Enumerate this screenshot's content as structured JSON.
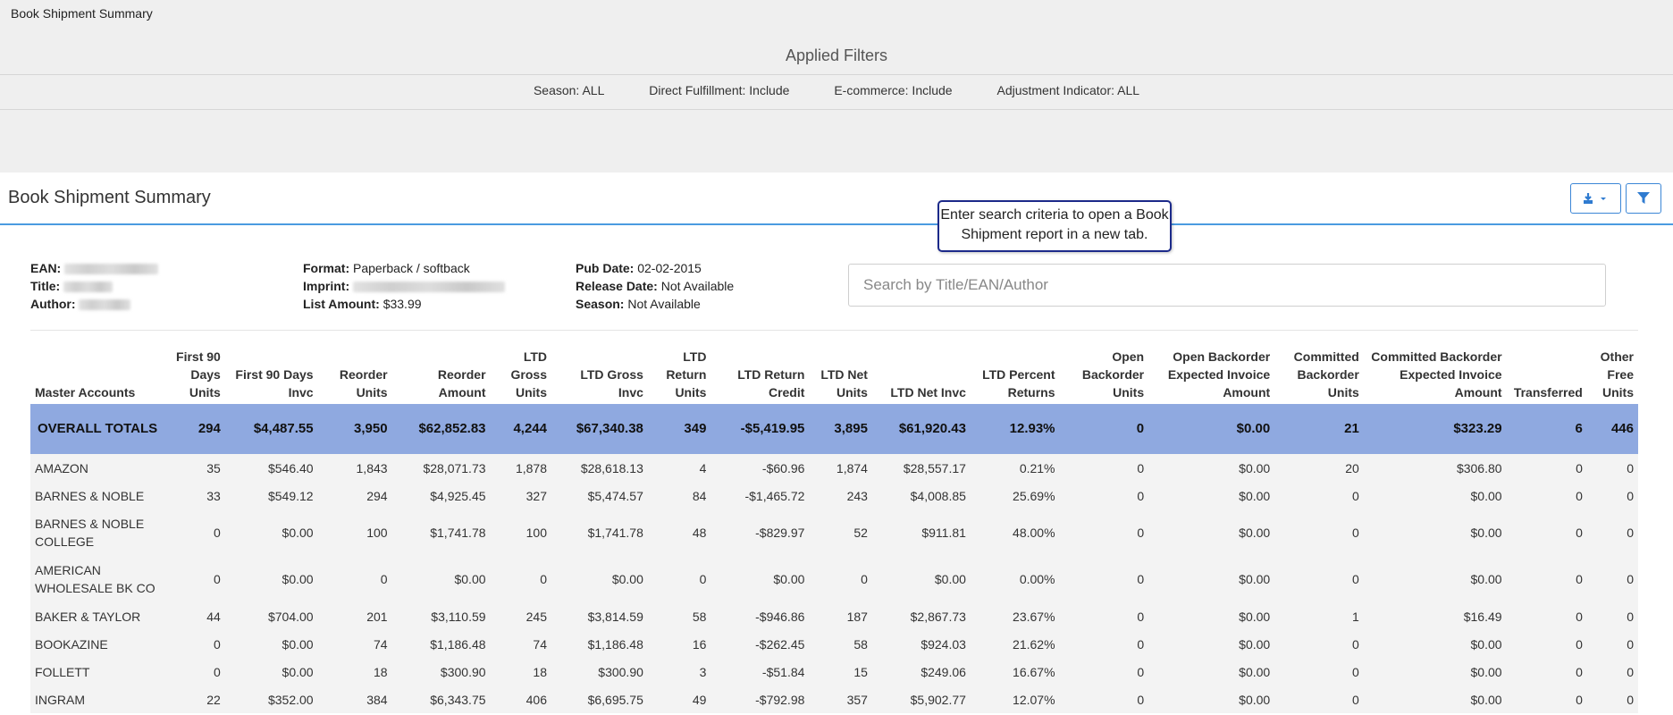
{
  "page_title": "Book Shipment Summary",
  "applied_filters": {
    "title": "Applied Filters",
    "items": [
      "Season: ALL",
      "Direct Fulfillment: Include",
      "E-commerce: Include",
      "Adjustment Indicator: ALL"
    ]
  },
  "panel": {
    "title": "Book Shipment Summary",
    "tooltip": "Enter search criteria to open a Book Shipment report in a new tab."
  },
  "book_info": {
    "ean_label": "EAN:",
    "title_label": "Title:",
    "author_label": "Author:",
    "format_label": "Format:",
    "format_value": "Paperback / softback",
    "imprint_label": "Imprint:",
    "list_amount_label": "List Amount:",
    "list_amount_value": "$33.99",
    "pub_date_label": "Pub Date:",
    "pub_date_value": "02-02-2015",
    "release_date_label": "Release Date:",
    "release_date_value": "Not Available",
    "season_label": "Season:",
    "season_value": "Not Available"
  },
  "search": {
    "placeholder": "Search by Title/EAN/Author"
  },
  "table": {
    "headers": [
      "Master Accounts",
      "First 90 Days Units",
      "First 90 Days Invc",
      "Reorder Units",
      "Reorder Amount",
      "LTD Gross Units",
      "LTD Gross Invc",
      "LTD Return Units",
      "LTD Return Credit",
      "LTD Net Units",
      "LTD Net Invc",
      "LTD Percent Returns",
      "Open Backorder Units",
      "Open Backorder Expected Invoice Amount",
      "Committed Backorder Units",
      "Committed Backorder Expected Invoice Amount",
      "Transferred",
      "Other Free Units"
    ],
    "totals": [
      "OVERALL TOTALS",
      "294",
      "$4,487.55",
      "3,950",
      "$62,852.83",
      "4,244",
      "$67,340.38",
      "349",
      "-$5,419.95",
      "3,895",
      "$61,920.43",
      "12.93%",
      "0",
      "$0.00",
      "21",
      "$323.29",
      "6",
      "446"
    ],
    "rows": [
      [
        "AMAZON",
        "35",
        "$546.40",
        "1,843",
        "$28,071.73",
        "1,878",
        "$28,618.13",
        "4",
        "-$60.96",
        "1,874",
        "$28,557.17",
        "0.21%",
        "0",
        "$0.00",
        "20",
        "$306.80",
        "0",
        "0"
      ],
      [
        "BARNES & NOBLE",
        "33",
        "$549.12",
        "294",
        "$4,925.45",
        "327",
        "$5,474.57",
        "84",
        "-$1,465.72",
        "243",
        "$4,008.85",
        "25.69%",
        "0",
        "$0.00",
        "0",
        "$0.00",
        "0",
        "0"
      ],
      [
        "BARNES & NOBLE COLLEGE",
        "0",
        "$0.00",
        "100",
        "$1,741.78",
        "100",
        "$1,741.78",
        "48",
        "-$829.97",
        "52",
        "$911.81",
        "48.00%",
        "0",
        "$0.00",
        "0",
        "$0.00",
        "0",
        "0"
      ],
      [
        "AMERICAN WHOLESALE BK CO",
        "0",
        "$0.00",
        "0",
        "$0.00",
        "0",
        "$0.00",
        "0",
        "$0.00",
        "0",
        "$0.00",
        "0.00%",
        "0",
        "$0.00",
        "0",
        "$0.00",
        "0",
        "0"
      ],
      [
        "BAKER & TAYLOR",
        "44",
        "$704.00",
        "201",
        "$3,110.59",
        "245",
        "$3,814.59",
        "58",
        "-$946.86",
        "187",
        "$2,867.73",
        "23.67%",
        "0",
        "$0.00",
        "1",
        "$16.49",
        "0",
        "0"
      ],
      [
        "BOOKAZINE",
        "0",
        "$0.00",
        "74",
        "$1,186.48",
        "74",
        "$1,186.48",
        "16",
        "-$262.45",
        "58",
        "$924.03",
        "21.62%",
        "0",
        "$0.00",
        "0",
        "$0.00",
        "0",
        "0"
      ],
      [
        "FOLLETT",
        "0",
        "$0.00",
        "18",
        "$300.90",
        "18",
        "$300.90",
        "3",
        "-$51.84",
        "15",
        "$249.06",
        "16.67%",
        "0",
        "$0.00",
        "0",
        "$0.00",
        "0",
        "0"
      ],
      [
        "INGRAM",
        "22",
        "$352.00",
        "384",
        "$6,343.75",
        "406",
        "$6,695.75",
        "49",
        "-$792.98",
        "357",
        "$5,902.77",
        "12.07%",
        "0",
        "$0.00",
        "0",
        "$0.00",
        "0",
        "0"
      ]
    ]
  }
}
